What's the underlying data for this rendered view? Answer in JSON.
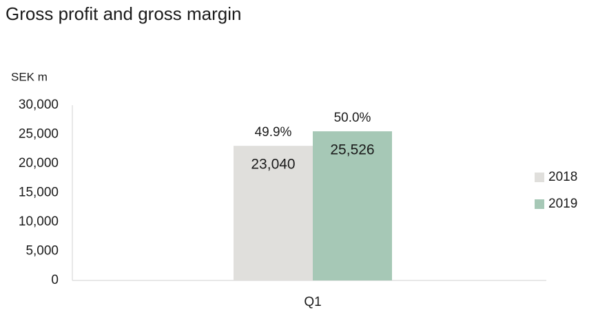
{
  "chart_data": {
    "type": "bar",
    "title": "Gross profit and gross margin",
    "y_axis_label": "SEK m",
    "categories": [
      "Q1"
    ],
    "series": [
      {
        "name": "2018",
        "color": "#e0dfdc",
        "values": [
          23040
        ],
        "value_labels": [
          "23,040"
        ],
        "annotations": [
          "49.9%"
        ]
      },
      {
        "name": "2019",
        "color": "#a6c8b6",
        "values": [
          25526
        ],
        "value_labels": [
          "25,526"
        ],
        "annotations": [
          "50.0%"
        ]
      }
    ],
    "ylim": [
      0,
      30000
    ],
    "yticks": [
      0,
      {
        "value": 5000,
        "label": "5,000"
      },
      {
        "value": 10000,
        "label": "10,000"
      },
      {
        "value": 15000,
        "label": "15,000"
      },
      {
        "value": 20000,
        "label": "20,000"
      },
      {
        "value": 25000,
        "label": "25,000"
      },
      {
        "value": 30000,
        "label": "30,000"
      }
    ],
    "grid": false,
    "legend": "right"
  }
}
